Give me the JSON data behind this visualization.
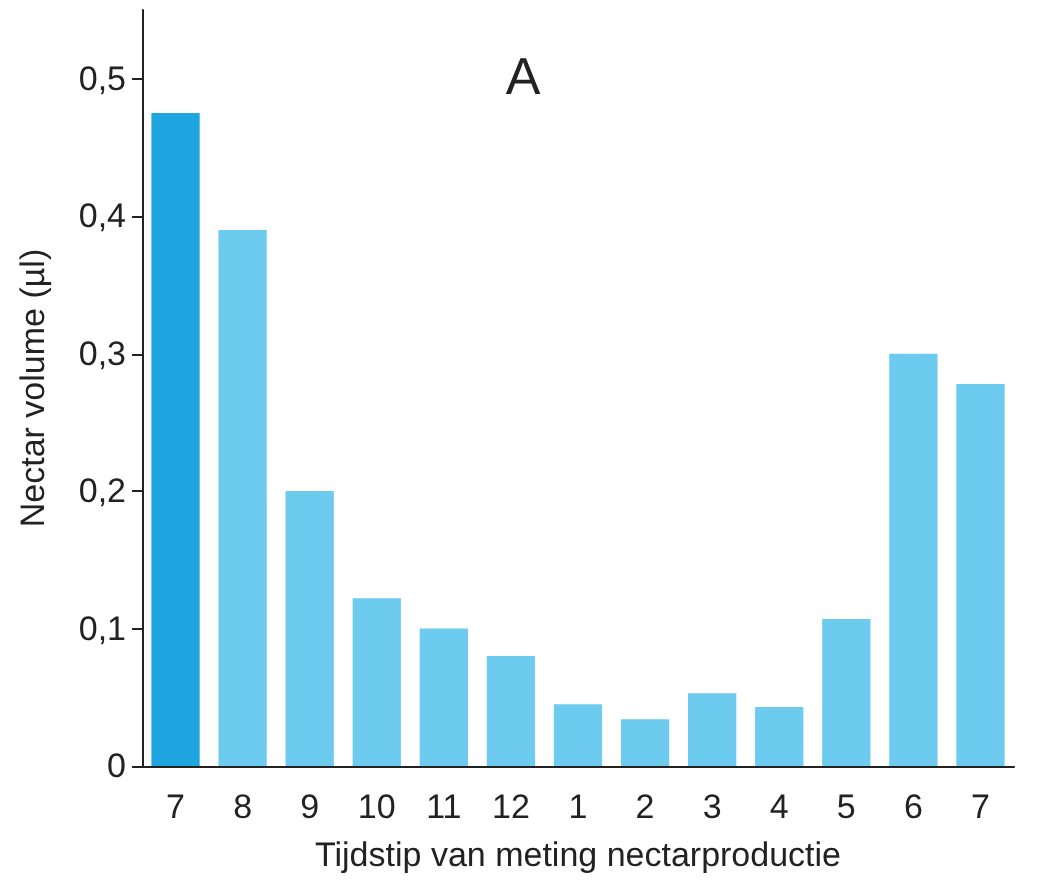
{
  "chart_data": {
    "type": "bar",
    "title": "A",
    "xlabel": "Tijdstip van meting nectarproductie",
    "ylabel": "Nectar volume (µl)",
    "categories": [
      "7",
      "8",
      "9",
      "10",
      "11",
      "12",
      "1",
      "2",
      "3",
      "4",
      "5",
      "6",
      "7"
    ],
    "values": [
      0.475,
      0.39,
      0.2,
      0.122,
      0.1,
      0.08,
      0.045,
      0.034,
      0.053,
      0.043,
      0.107,
      0.3,
      0.278
    ],
    "colors": [
      "#1fa6e0",
      "#6ccbef",
      "#6ccbef",
      "#6ccbef",
      "#6ccbef",
      "#6ccbef",
      "#6ccbef",
      "#6ccbef",
      "#6ccbef",
      "#6ccbef",
      "#6ccbef",
      "#6ccbef",
      "#6ccbef"
    ],
    "ylim": [
      0,
      0.55
    ],
    "yticks": [
      0,
      {
        "value": 0.1,
        "label": "0,1"
      },
      {
        "value": 0.2,
        "label": "0,2"
      },
      {
        "value": 0.3,
        "label": "0,3"
      },
      {
        "value": 0.4,
        "label": "0,4"
      },
      {
        "value": 0.5,
        "label": "0,5"
      }
    ],
    "grid": false
  }
}
